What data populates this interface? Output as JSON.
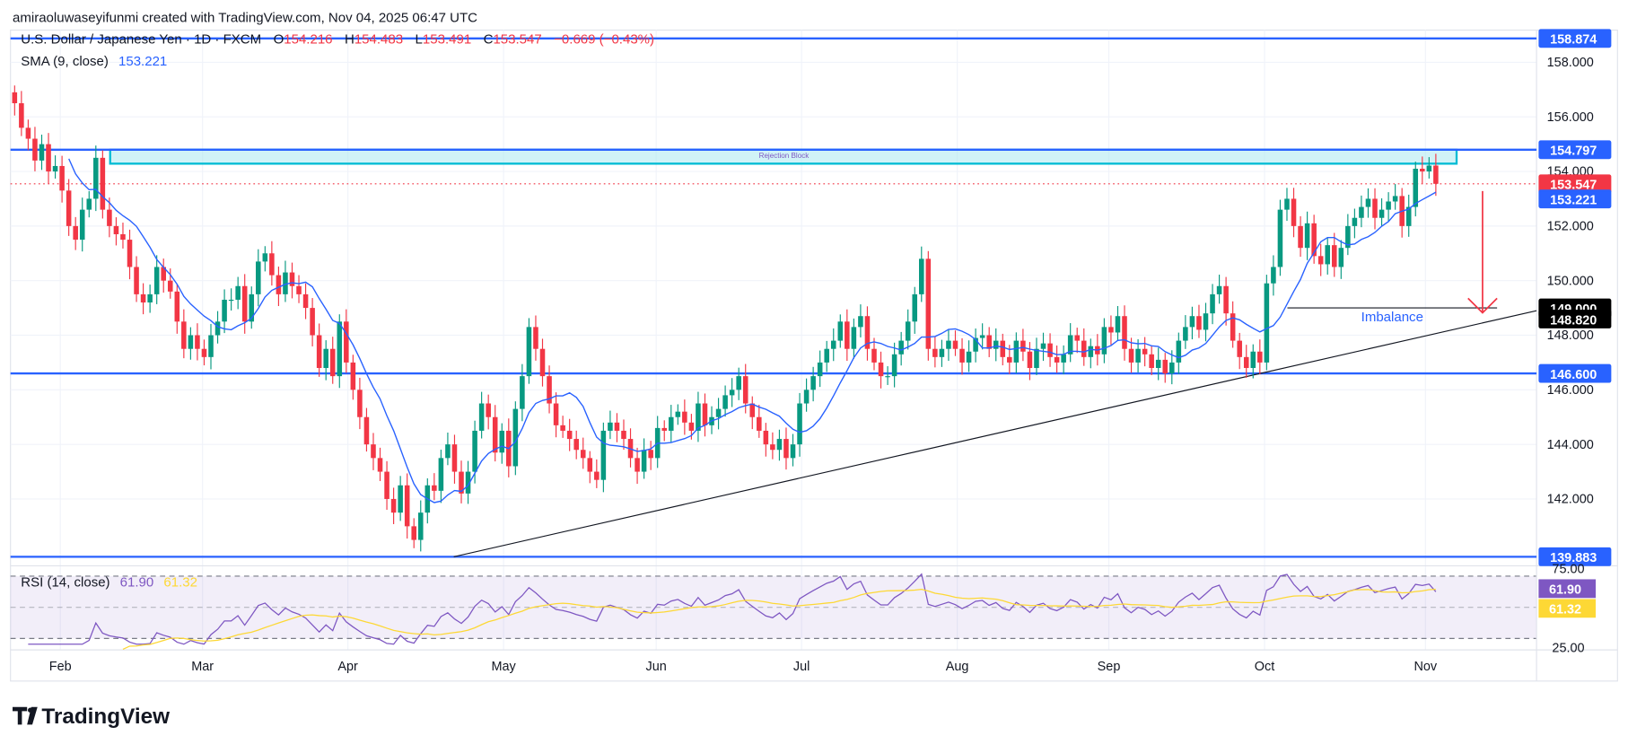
{
  "attribution": "amiraoluwaseyifunmi created with TradingView.com, Nov 04, 2025 06:47 UTC",
  "legend": {
    "symbol": "U.S. Dollar / Japanese Yen · 1D · FXCM",
    "open_label": "O",
    "open": "154.216",
    "high_label": "H",
    "high": "154.483",
    "low_label": "L",
    "low": "153.491",
    "close_label": "C",
    "close": "153.547",
    "change": "−0.669 (−0.43%)",
    "sma_label": "SMA (9, close)",
    "sma_value": "153.221",
    "rsi_label": "RSI (14, close)",
    "rsi_value": "61.90",
    "rsi_ma_value": "61.32"
  },
  "colors": {
    "up": "#089981",
    "down": "#f23645",
    "sma": "#2962ff",
    "level": "#2962ff",
    "rsi": "#7e57c2",
    "rsi_ma": "#fdd835",
    "block": "#00bcd4"
  },
  "chart_data": {
    "type": "candlestick",
    "interval": "1D",
    "price_ticks": [
      "158.000",
      "156.000",
      "154.000",
      "152.000",
      "150.000",
      "148.000",
      "146.000",
      "144.000",
      "142.000"
    ],
    "ylim": [
      139.5,
      159.2
    ],
    "time_ticks": [
      "Feb",
      "Mar",
      "Apr",
      "May",
      "Jun",
      "Jul",
      "Aug",
      "Sep",
      "Oct",
      "Nov"
    ],
    "levels": [
      {
        "price": 158.874,
        "label": "158.874"
      },
      {
        "price": 154.797,
        "label": "154.797"
      },
      {
        "price": 146.6,
        "label": "146.600"
      },
      {
        "price": 139.883,
        "label": "139.883"
      }
    ],
    "current_price": {
      "price": 153.547,
      "label": "153.547"
    },
    "sma_marker": {
      "price": 153.221,
      "label": "153.221"
    },
    "imbalance": {
      "price": 149.0,
      "label": "149.000",
      "text": "Imbalance"
    },
    "target": {
      "price": 148.82,
      "label": "148.820"
    },
    "rejection_block": {
      "top": 154.797,
      "bottom": 154.4,
      "text": "Rejection Block"
    },
    "trendline": {
      "from_price": 139.883,
      "to_price": 148.9
    },
    "closes": [
      156.5,
      155.6,
      155.2,
      154.4,
      155.0,
      154.0,
      154.2,
      153.3,
      152.0,
      151.5,
      152.6,
      153.0,
      154.5,
      152.6,
      152.0,
      151.7,
      151.5,
      150.5,
      149.5,
      149.2,
      149.5,
      150.5,
      150.0,
      149.6,
      148.5,
      147.5,
      148.0,
      147.5,
      147.2,
      148.0,
      148.5,
      149.3,
      149.3,
      149.8,
      148.5,
      149.5,
      150.7,
      151.0,
      150.2,
      149.5,
      150.3,
      149.8,
      149.5,
      149.0,
      148.0,
      146.8,
      147.5,
      146.5,
      148.5,
      147.0,
      146.0,
      145.0,
      144.0,
      143.5,
      143.0,
      142.0,
      141.5,
      142.5,
      141.0,
      140.5,
      141.5,
      142.5,
      142.3,
      143.5,
      144.0,
      143.0,
      142.2,
      143.0,
      144.5,
      145.5,
      145.0,
      143.7,
      144.5,
      143.2,
      145.3,
      146.5,
      148.3,
      147.5,
      146.5,
      145.5,
      144.7,
      144.5,
      144.2,
      143.8,
      143.5,
      143.0,
      142.7,
      144.5,
      144.8,
      144.5,
      144.2,
      143.5,
      143.0,
      143.8,
      143.5,
      144.6,
      144.5,
      145.0,
      145.2,
      144.8,
      144.5,
      145.5,
      144.7,
      145.0,
      145.3,
      145.8,
      146.0,
      146.5,
      145.5,
      145.0,
      144.5,
      144.0,
      143.8,
      144.2,
      143.5,
      144.0,
      145.5,
      146.0,
      146.5,
      147.0,
      147.5,
      147.8,
      148.5,
      147.5,
      148.3,
      148.7,
      147.5,
      147.0,
      146.5,
      146.5,
      147.3,
      147.8,
      148.5,
      149.5,
      150.8,
      147.5,
      147.2,
      147.5,
      147.8,
      147.5,
      147.0,
      147.4,
      147.9,
      148.0,
      147.5,
      147.8,
      147.2,
      147.0,
      147.8,
      147.4,
      146.8,
      147.5,
      147.7,
      147.2,
      147.0,
      147.3,
      148.0,
      147.8,
      147.2,
      147.6,
      147.3,
      148.3,
      148.1,
      148.7,
      147.5,
      147.0,
      147.5,
      147.3,
      146.8,
      147.1,
      146.6,
      147.0,
      147.8,
      148.3,
      148.7,
      148.2,
      148.8,
      149.5,
      149.8,
      148.8,
      147.8,
      147.2,
      146.8,
      147.4,
      147.0,
      149.9,
      150.5,
      152.6,
      153.0,
      152.0,
      151.2,
      152.1,
      150.9,
      150.6,
      151.3,
      150.5,
      151.2,
      152.0,
      152.3,
      152.7,
      153.0,
      152.3,
      152.6,
      152.9,
      153.1,
      152.0,
      152.7,
      154.1,
      154.0,
      154.216,
      153.547
    ],
    "rsi_levels": {
      "upper": 70,
      "lower": 30,
      "ticks": [
        "75.00",
        "25.00"
      ]
    }
  },
  "footer": {
    "logo_text": "TradingView"
  }
}
